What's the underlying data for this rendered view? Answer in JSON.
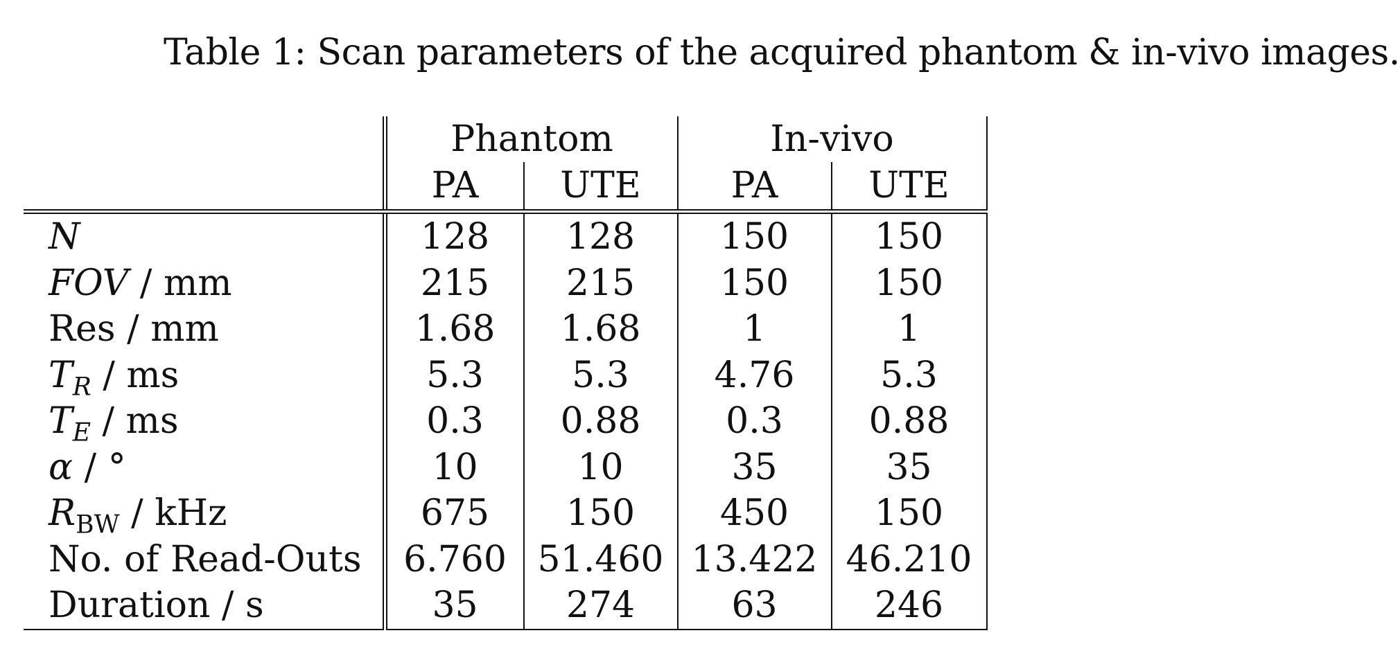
{
  "caption": "Table 1: Scan parameters of the acquired phantom & in-vivo images.",
  "table": {
    "groups": [
      "Phantom",
      "In-vivo"
    ],
    "subheaders": [
      "PA",
      "UTE",
      "PA",
      "UTE"
    ],
    "rows": [
      {
        "label_main": "N",
        "label_sub": "",
        "label_unit": "",
        "values": [
          "128",
          "128",
          "150",
          "150"
        ]
      },
      {
        "label_main": "FOV",
        "label_sub": "",
        "label_unit": " / mm",
        "values": [
          "215",
          "215",
          "150",
          "150"
        ]
      },
      {
        "label_main": "Res",
        "label_sub": "",
        "label_unit": " / mm",
        "values": [
          "1.68",
          "1.68",
          "1",
          "1"
        ]
      },
      {
        "label_main": "T",
        "label_sub": "R",
        "label_unit": " / ms",
        "values": [
          "5.3",
          "5.3",
          "4.76",
          "5.3"
        ]
      },
      {
        "label_main": "T",
        "label_sub": "E",
        "label_unit": " / ms",
        "values": [
          "0.3",
          "0.88",
          "0.3",
          "0.88"
        ]
      },
      {
        "label_main": "α",
        "label_sub": "",
        "label_unit": " / °",
        "values": [
          "10",
          "10",
          "35",
          "35"
        ]
      },
      {
        "label_main": "R",
        "label_sub": "BW",
        "label_unit": " / kHz",
        "values": [
          "675",
          "150",
          "450",
          "150"
        ]
      },
      {
        "label_main": "No. of Read-Outs",
        "label_sub": "",
        "label_unit": "",
        "values": [
          "6.760",
          "51.460",
          "13.422",
          "46.210"
        ]
      },
      {
        "label_main": "Duration",
        "label_sub": "",
        "label_unit": " / s",
        "values": [
          "35",
          "274",
          "63",
          "246"
        ]
      }
    ]
  }
}
